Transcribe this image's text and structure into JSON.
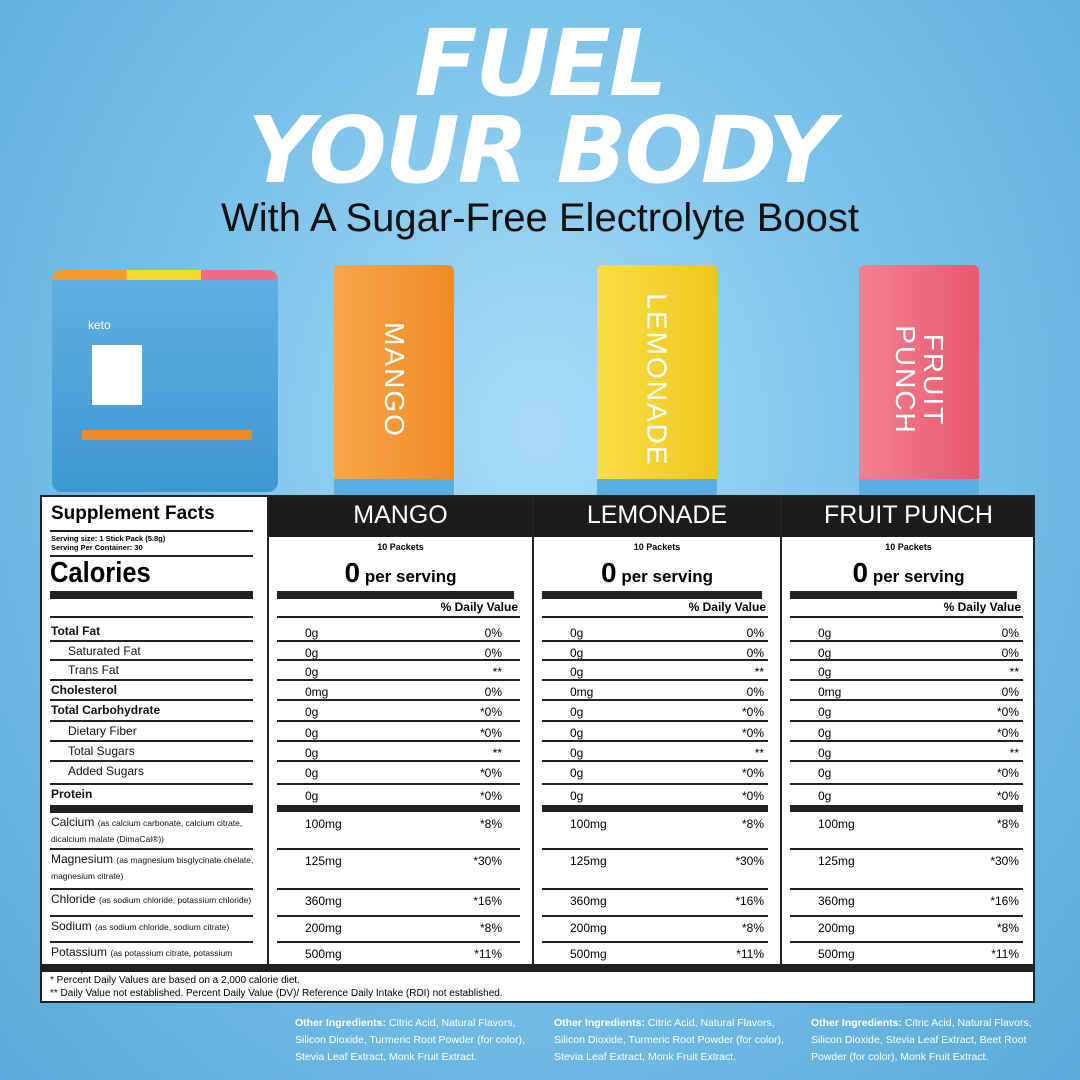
{
  "headline": {
    "line1": "FUEL",
    "line2": "YOUR BODY",
    "subtitle": "With A Sugar-Free Electrolyte Boost"
  },
  "bag": {
    "logo": "keto"
  },
  "colors": {
    "mango": "#f4a340",
    "lemonade": "#f5d634",
    "fruit_punch": "#ef6f7f",
    "header": "#1c1c1c"
  },
  "packets": [
    {
      "name": "MANGO"
    },
    {
      "name": "LEMONADE"
    },
    {
      "name": "FRUIT\nPUNCH"
    }
  ],
  "facts": {
    "title": "Supplement Facts",
    "serving_size": "Serving size: 1 Stick Pack (5.8g)",
    "servings": "Serving Per Container: 30",
    "calories_label": "Calories",
    "dv_header": "% Daily Value",
    "flavors": [
      {
        "name": "MANGO",
        "packets": "10 Packets",
        "calories": "0",
        "per_serving": "per serving"
      },
      {
        "name": "LEMONADE",
        "packets": "10 Packets",
        "calories": "0",
        "per_serving": "per serving"
      },
      {
        "name": "FRUIT PUNCH",
        "packets": "10 Packets",
        "calories": "0",
        "per_serving": "per serving"
      }
    ],
    "rows": [
      {
        "label": "Total Fat",
        "note": "",
        "bold": true,
        "indent": false,
        "amount": "0g",
        "dv": "0%"
      },
      {
        "label": "Saturated Fat",
        "note": "",
        "bold": false,
        "indent": true,
        "amount": "0g",
        "dv": "0%"
      },
      {
        "label": "Trans Fat",
        "note": "",
        "bold": false,
        "indent": true,
        "amount": "0g",
        "dv": "**"
      },
      {
        "label": "Cholesterol",
        "note": "",
        "bold": true,
        "indent": false,
        "amount": "0mg",
        "dv": "0%"
      },
      {
        "label": "Total Carbohydrate",
        "note": "",
        "bold": true,
        "indent": false,
        "amount": "0g",
        "dv": "*0%"
      },
      {
        "label": "Dietary Fiber",
        "note": "",
        "bold": false,
        "indent": true,
        "amount": "0g",
        "dv": "*0%"
      },
      {
        "label": "Total Sugars",
        "note": "",
        "bold": false,
        "indent": true,
        "amount": "0g",
        "dv": "**"
      },
      {
        "label": "Added Sugars",
        "note": "",
        "bold": false,
        "indent": true,
        "amount": "0g",
        "dv": "*0%"
      },
      {
        "label": "Protein",
        "note": "",
        "bold": true,
        "indent": false,
        "amount": "0g",
        "dv": "*0%"
      },
      {
        "label": "Calcium",
        "note": "(as calcium carbonate, calcium citrate, dicalcium malate (DimaCal®))",
        "bold": false,
        "indent": false,
        "amount": "100mg",
        "dv": "*8%"
      },
      {
        "label": "Magnesium",
        "note": "(as magnesium bisglycinate chelate, magnesium citrate)",
        "bold": false,
        "indent": false,
        "amount": "125mg",
        "dv": "*30%"
      },
      {
        "label": "Chloride",
        "note": "(as sodium chloride, potassium chloride)",
        "bold": false,
        "indent": false,
        "amount": "360mg",
        "dv": "*16%"
      },
      {
        "label": "Sodium",
        "note": "(as sodium chloride, sodium citrate)",
        "bold": false,
        "indent": false,
        "amount": "200mg",
        "dv": "*8%"
      },
      {
        "label": "Potassium",
        "note": "(as potassium citrate, potassium chloride)",
        "bold": false,
        "indent": false,
        "amount": "500mg",
        "dv": "*11%"
      }
    ],
    "footnote1": "* Percent Daily Values are based on a 2,000 calorie diet.",
    "footnote2": "** Daily Value not established. Percent Daily Value (DV)/ Reference Daily Intake (RDI) not established."
  },
  "ingredients": [
    {
      "label": "Other Ingredients:",
      "text": " Citric Acid, Natural Flavors, Silicon Dioxide, Turmeric Root Powder (for color), Stevia Leaf Extract, Monk Fruit Extract."
    },
    {
      "label": "Other Ingredients:",
      "text": " Citric Acid, Natural Flavors, Silicon Dioxide, Turmeric Root Powder (for color), Stevia Leaf Extract, Monk Fruit Extract."
    },
    {
      "label": "Other Ingredients:",
      "text": " Citric Acid, Natural Flavors, Silicon Dioxide, Stevia Leaf Extract, Beet Root Powder (for color), Monk Fruit Extract."
    }
  ]
}
